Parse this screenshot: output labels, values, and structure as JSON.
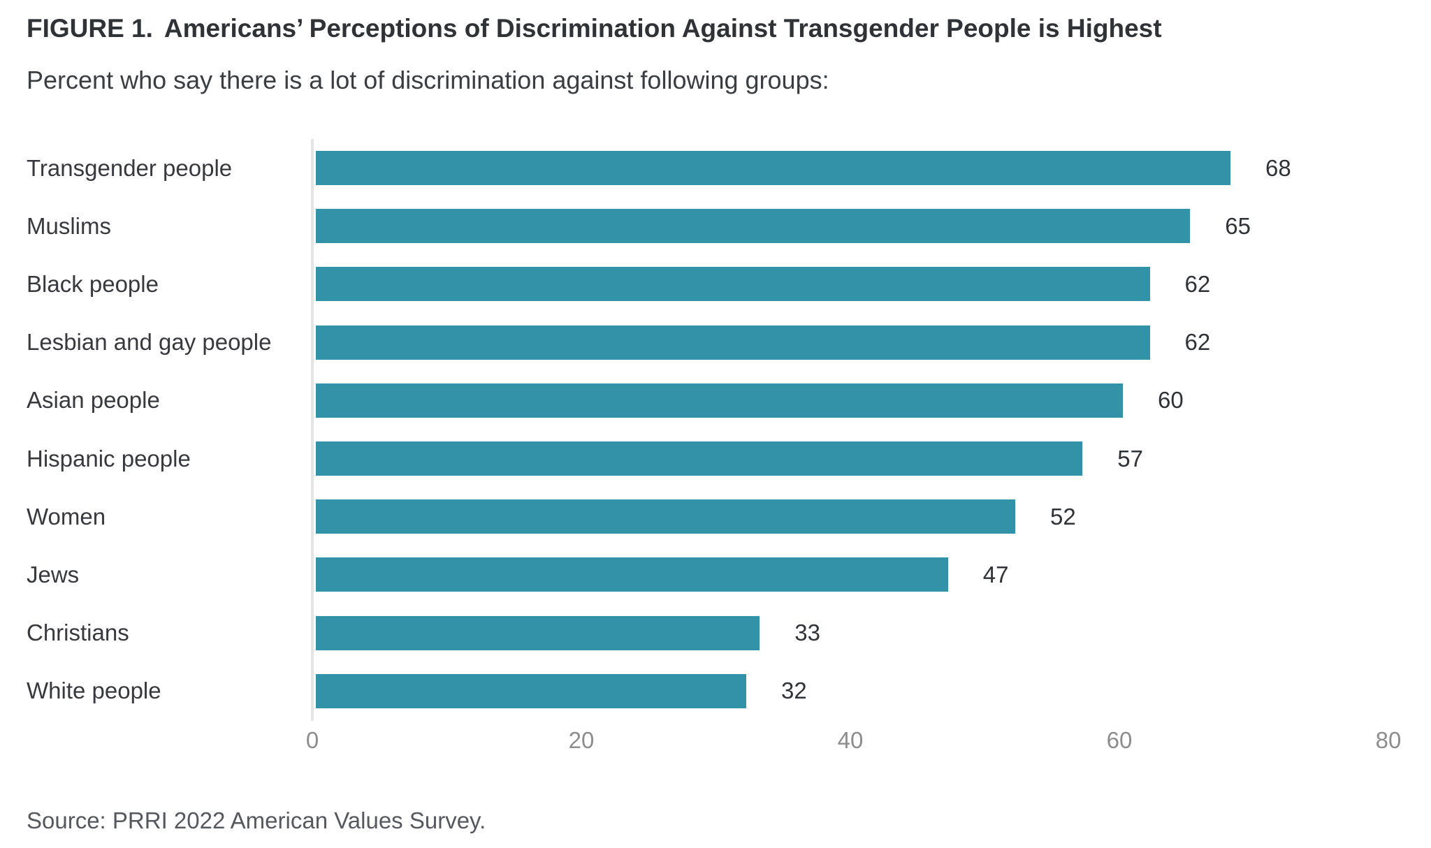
{
  "header": {
    "figure_label": "FIGURE 1.",
    "title": "Americans’ Perceptions of Discrimination Against Transgender People is Highest",
    "subtitle": "Percent who say there is a lot of discrimination against following groups:"
  },
  "chart_data": {
    "type": "bar",
    "orientation": "horizontal",
    "title": "FIGURE 1.  Americans’ Perceptions of Discrimination Against Transgender People is Highest",
    "subtitle": "Percent who say there is a lot of discrimination against following groups:",
    "categories": [
      "Transgender people",
      "Muslims",
      "Black people",
      "Lesbian and gay people",
      "Asian people",
      "Hispanic people",
      "Women",
      "Jews",
      "Christians",
      "White people"
    ],
    "values": [
      68,
      65,
      62,
      62,
      60,
      57,
      52,
      47,
      33,
      32
    ],
    "xlim": [
      0,
      80
    ],
    "x_ticks": [
      "0",
      "20",
      "40",
      "60",
      "80"
    ],
    "x_tick_values": [
      0,
      20,
      40,
      60,
      80
    ],
    "xlabel": "",
    "ylabel": "",
    "grid": false,
    "legend_position": "none",
    "value_labels_shown": true
  },
  "footer": {
    "source": "Source: PRRI 2022 American Values Survey."
  },
  "colors": {
    "bar": "#3292a8",
    "title_text": "#2f3237",
    "subtitle_text": "#3a3d42",
    "category_text": "#37393f",
    "value_text": "#2f3237",
    "tick_text": "#8d8d8d",
    "axis_line": "#e4e4e4",
    "source_text": "#55585e",
    "background": "#ffffff"
  }
}
